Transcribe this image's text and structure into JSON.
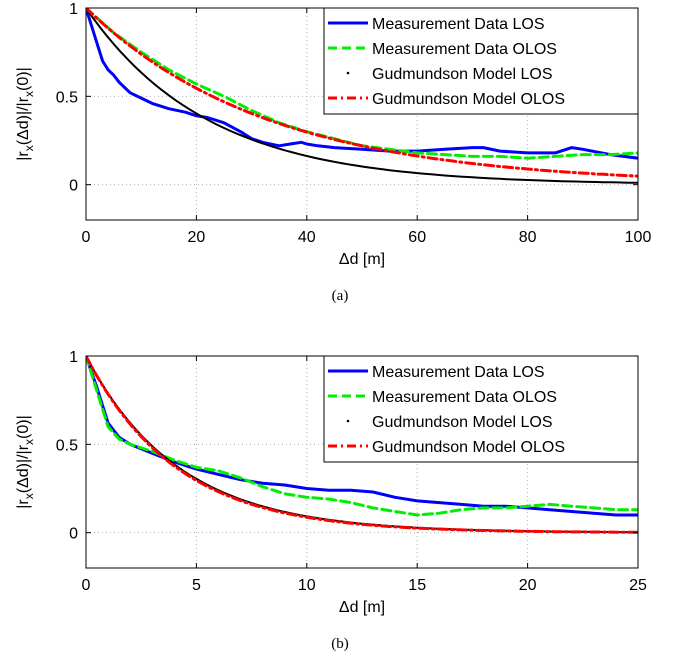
{
  "chart_data": [
    {
      "type": "line",
      "caption": "(a)",
      "xlabel": "Δd [m]",
      "ylabel_main": "|r",
      "ylabel_sub1": "x",
      "ylabel_mid": "(Δd)|/|r",
      "ylabel_sub2": "x",
      "ylabel_end": "(0)|",
      "xlim": [
        0,
        100
      ],
      "ylim": [
        -0.2,
        1
      ],
      "xticks": [
        0,
        20,
        40,
        60,
        80,
        100
      ],
      "yticks": [
        0,
        0.5,
        1
      ],
      "grid": true,
      "legend_position": "top-right",
      "series": [
        {
          "name": "Measurement Data LOS",
          "color": "#0000ff",
          "style": "solid",
          "x": [
            0,
            1,
            2,
            3,
            4,
            5,
            6,
            7,
            8,
            10,
            12,
            15,
            18,
            20,
            22,
            25,
            28,
            30,
            32,
            35,
            37,
            39,
            40,
            42,
            45,
            50,
            55,
            60,
            65,
            70,
            72,
            75,
            80,
            85,
            88,
            90,
            95,
            100
          ],
          "y": [
            1,
            0.9,
            0.8,
            0.7,
            0.65,
            0.62,
            0.58,
            0.55,
            0.52,
            0.49,
            0.46,
            0.43,
            0.41,
            0.39,
            0.38,
            0.35,
            0.3,
            0.26,
            0.24,
            0.22,
            0.23,
            0.24,
            0.23,
            0.22,
            0.21,
            0.2,
            0.19,
            0.19,
            0.2,
            0.21,
            0.21,
            0.19,
            0.18,
            0.18,
            0.21,
            0.2,
            0.17,
            0.15
          ]
        },
        {
          "name": "Measurement Data OLOS",
          "color": "#00ee00",
          "style": "dashed",
          "x": [
            0,
            5,
            10,
            15,
            20,
            25,
            30,
            35,
            40,
            45,
            50,
            55,
            60,
            65,
            70,
            75,
            80,
            85,
            90,
            95,
            100
          ],
          "y": [
            1,
            0.86,
            0.75,
            0.65,
            0.57,
            0.5,
            0.42,
            0.35,
            0.3,
            0.26,
            0.22,
            0.2,
            0.18,
            0.17,
            0.16,
            0.16,
            0.15,
            0.16,
            0.17,
            0.17,
            0.18
          ]
        },
        {
          "name": "Gudmundson Model LOS",
          "color": "#000000",
          "style": "solid",
          "model": "exp",
          "decay": 22,
          "x": [],
          "y": []
        },
        {
          "name": "Gudmundson Model OLOS",
          "color": "#ff0000",
          "style": "dashdot",
          "model": "exp",
          "decay": 33,
          "x": [],
          "y": []
        }
      ]
    },
    {
      "type": "line",
      "caption": "(b)",
      "xlabel": "Δd [m]",
      "ylabel_main": "|r",
      "ylabel_sub1": "x",
      "ylabel_mid": "(Δd)|/|r",
      "ylabel_sub2": "x",
      "ylabel_end": "(0)|",
      "xlim": [
        0,
        25
      ],
      "ylim": [
        -0.2,
        1
      ],
      "xticks": [
        0,
        5,
        10,
        15,
        20,
        25
      ],
      "yticks": [
        0,
        0.5,
        1
      ],
      "grid": true,
      "legend_position": "top-right",
      "series": [
        {
          "name": "Measurement Data LOS",
          "color": "#0000ff",
          "style": "solid",
          "x": [
            0,
            0.5,
            1,
            1.5,
            2,
            3,
            4,
            5,
            6,
            7,
            8,
            9,
            10,
            11,
            12,
            13,
            14,
            15,
            16,
            17,
            18,
            19,
            20,
            21,
            22,
            23,
            24,
            25
          ],
          "y": [
            1,
            0.82,
            0.62,
            0.54,
            0.5,
            0.45,
            0.4,
            0.36,
            0.33,
            0.3,
            0.28,
            0.27,
            0.25,
            0.24,
            0.24,
            0.23,
            0.2,
            0.18,
            0.17,
            0.16,
            0.15,
            0.15,
            0.14,
            0.13,
            0.12,
            0.11,
            0.1,
            0.1
          ]
        },
        {
          "name": "Measurement Data OLOS",
          "color": "#00ee00",
          "style": "dashed",
          "x": [
            0,
            0.5,
            1,
            1.5,
            2,
            3,
            4,
            5,
            6,
            7,
            8,
            9,
            10,
            11,
            12,
            13,
            14,
            15,
            16,
            17,
            18,
            19,
            20,
            21,
            22,
            23,
            24,
            25
          ],
          "y": [
            1,
            0.8,
            0.6,
            0.53,
            0.5,
            0.46,
            0.41,
            0.37,
            0.35,
            0.31,
            0.26,
            0.22,
            0.2,
            0.19,
            0.17,
            0.14,
            0.12,
            0.1,
            0.11,
            0.13,
            0.14,
            0.14,
            0.15,
            0.16,
            0.15,
            0.14,
            0.13,
            0.13
          ]
        },
        {
          "name": "Gudmundson Model LOS",
          "color": "#000000",
          "style": "solid",
          "model": "exp",
          "decay": 4.2,
          "x": [],
          "y": []
        },
        {
          "name": "Gudmundson Model OLOS",
          "color": "#ff0000",
          "style": "dashdot",
          "model": "exp",
          "decay": 4.1,
          "x": [],
          "y": []
        }
      ]
    }
  ]
}
